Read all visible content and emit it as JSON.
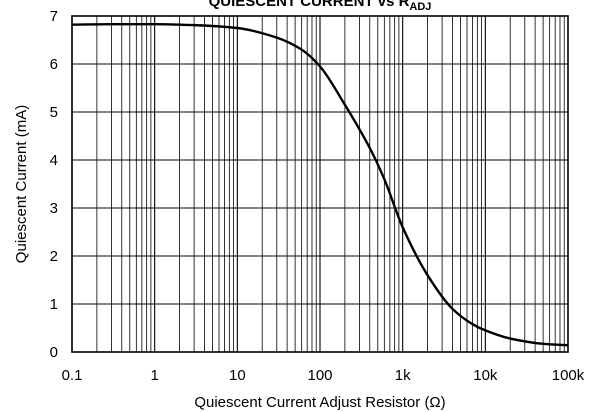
{
  "chart_data": {
    "type": "line",
    "title": "QUIESCENT CURRENT vs R",
    "title_subscript": "ADJ",
    "xlabel": "Quiescent Current Adjust Resistor (Ω)",
    "ylabel": "Quiescent Current (mA)",
    "x_scale": "log",
    "xlim": [
      0.1,
      100000
    ],
    "ylim": [
      0,
      7
    ],
    "x_ticks": [
      {
        "value": 0.1,
        "label": "0.1"
      },
      {
        "value": 1,
        "label": "1"
      },
      {
        "value": 10,
        "label": "10"
      },
      {
        "value": 100,
        "label": "100"
      },
      {
        "value": 1000,
        "label": "1k"
      },
      {
        "value": 10000,
        "label": "10k"
      },
      {
        "value": 100000,
        "label": "100k"
      }
    ],
    "y_ticks": [
      {
        "value": 0,
        "label": "0"
      },
      {
        "value": 1,
        "label": "1"
      },
      {
        "value": 2,
        "label": "2"
      },
      {
        "value": 3,
        "label": "3"
      },
      {
        "value": 4,
        "label": "4"
      },
      {
        "value": 5,
        "label": "5"
      },
      {
        "value": 6,
        "label": "6"
      },
      {
        "value": 7,
        "label": "7"
      }
    ],
    "grid": true,
    "series": [
      {
        "color": "#000000",
        "x": [
          0.1,
          0.3,
          1,
          3,
          10,
          30,
          60,
          100,
          200,
          400,
          600,
          1000,
          2000,
          4000,
          7000,
          10000,
          20000,
          50000,
          100000
        ],
        "y": [
          6.82,
          6.83,
          6.83,
          6.81,
          6.75,
          6.55,
          6.3,
          5.95,
          5.15,
          4.25,
          3.6,
          2.6,
          1.6,
          0.9,
          0.58,
          0.45,
          0.28,
          0.17,
          0.14
        ]
      }
    ]
  }
}
